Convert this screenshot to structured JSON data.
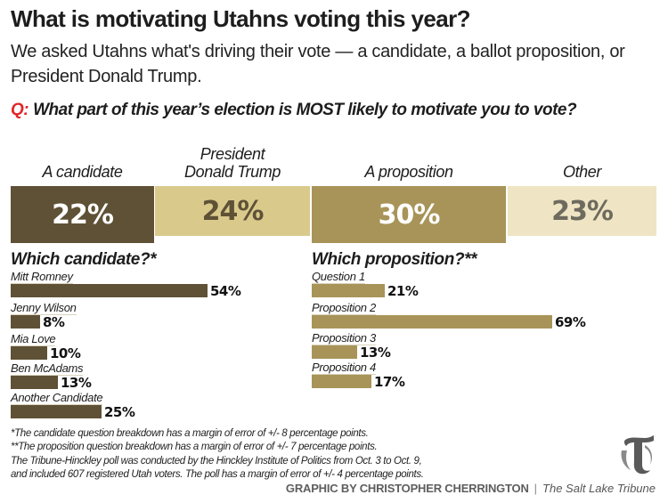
{
  "header": {
    "title": "What is motivating Utahns voting this year?",
    "subtitle": "We asked Utahns what's driving their vote — a candidate, a ballot proposition, or President Donald Trump.",
    "question_prefix": "Q:",
    "question": "What part of this year’s election is MOST likely to motivate you to vote?"
  },
  "colors": {
    "candidate": "#5e5136",
    "trump": "#d9ca8c",
    "proposition": "#a89459",
    "other": "#efe5c4",
    "question_prefix": "#e0262b"
  },
  "chart_data": [
    {
      "type": "bar",
      "title": "What part of this year’s election is MOST likely to motivate you to vote?",
      "orientation": "horizontal-stacked-tiles",
      "categories": [
        "A candidate",
        "President Donald Trump",
        "A proposition",
        "Other"
      ],
      "values": [
        22,
        24,
        30,
        23
      ],
      "value_labels": [
        "22%",
        "24%",
        "30%",
        "23%"
      ],
      "unit": "%",
      "colors": [
        "#5e5136",
        "#d9ca8c",
        "#a89459",
        "#efe5c4"
      ],
      "label_colors": [
        "#ffffff",
        "#5e5136",
        "#ffffff",
        "#6e6a5e"
      ]
    },
    {
      "type": "bar",
      "orientation": "horizontal",
      "title": "Which candidate?*",
      "categories": [
        "Mitt Romney",
        "Jenny Wilson",
        "Mia Love",
        "Ben McAdams",
        "Another Candidate"
      ],
      "values": [
        54,
        8,
        10,
        13,
        25
      ],
      "value_labels": [
        "54%",
        "8%",
        "10%",
        "13%",
        "25%"
      ],
      "unit": "%",
      "color": "#5e5136"
    },
    {
      "type": "bar",
      "orientation": "horizontal",
      "title": "Which proposition?**",
      "categories": [
        "Question 1",
        "Proposition 2",
        "Proposition 3",
        "Proposition 4"
      ],
      "values": [
        21,
        69,
        13,
        17
      ],
      "value_labels": [
        "21%",
        "69%",
        "13%",
        "17%"
      ],
      "unit": "%",
      "color": "#a89459"
    }
  ],
  "notes": [
    "*The candidate question breakdown has a margin of error of +/- 8 percentage points.",
    "**The proposition question breakdown has a margin of error of +/- 7 percentage points.",
    "The Tribune-Hinckley poll was conducted by the Hinckley Institute of Politics from Oct. 3 to Oct. 9,",
    "and included 607 registered Utah voters. The poll has a margin of error of +/- 4 percentage points."
  ],
  "credit": {
    "byline": "GRAPHIC BY CHRISTOPHER CHERRINGTON",
    "separator": "|",
    "publication": "The Salt Lake Tribune",
    "logo_icon": "tribune-t-logo"
  }
}
